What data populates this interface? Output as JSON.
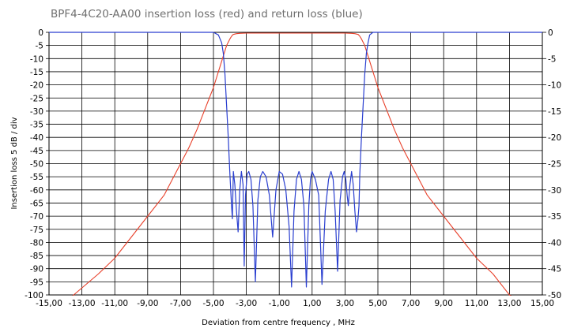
{
  "chart_data": {
    "type": "line",
    "title": "BPF4-4C20-AA00 insertion loss (red) and return loss (blue)",
    "xlabel": "Deviation from centre frequency ,  MHz",
    "ylabel": "Insertion loss  5 dB / div",
    "xlim": [
      -15,
      15
    ],
    "ylim_left": [
      -100,
      0
    ],
    "ylim_right": [
      -50,
      0
    ],
    "x_ticks": [
      "-15,00",
      "-13,00",
      "-11,00",
      "-9,00",
      "-7,00",
      "-5,00",
      "-3,00",
      "-1,00",
      "1,00",
      "3,00",
      "5,00",
      "7,00",
      "9,00",
      "11,00",
      "13,00",
      "15,00"
    ],
    "y_ticks_left": [
      "0",
      "-5",
      "-10",
      "-15",
      "-20",
      "-25",
      "-30",
      "-35",
      "-40",
      "-45",
      "-50",
      "-55",
      "-60",
      "-65",
      "-70",
      "-75",
      "-80",
      "-85",
      "-90",
      "-95",
      "-100"
    ],
    "y_ticks_right": [
      "0",
      "-5",
      "-10",
      "-15",
      "-20",
      "-25",
      "-30",
      "-35",
      "-40",
      "-45",
      "-50"
    ],
    "grid": true,
    "colors": {
      "insertion_loss": "#e8402a",
      "return_loss": "#2a3fd0",
      "grid": "#000000"
    },
    "series": [
      {
        "axis": "left",
        "x": [
          -15,
          -13.5,
          -12,
          -11,
          -10,
          -9,
          -8,
          -7,
          -6.5,
          -6,
          -5.5,
          -5,
          -4.8,
          -4.6,
          -4.4,
          -4.2,
          -4.0,
          -3.9,
          -3.8,
          -3.6,
          -3.4,
          -3.0,
          -2.0,
          0,
          2.0,
          3.0,
          3.4,
          3.6,
          3.8,
          3.9,
          4.0,
          4.2,
          4.4,
          4.6,
          4.8,
          5.0,
          5.5,
          6.0,
          6.5,
          7.0,
          8.0,
          9.0,
          10.0,
          11.0,
          12.0,
          13.0,
          13.5,
          15
        ],
        "values": [
          -110,
          -100,
          -92,
          -86,
          -78,
          -70,
          -62,
          -50,
          -44,
          -37,
          -29,
          -21,
          -17,
          -13,
          -9,
          -5,
          -2.5,
          -1.5,
          -0.8,
          -0.5,
          -0.4,
          -0.3,
          -0.3,
          -0.3,
          -0.3,
          -0.3,
          -0.4,
          -0.5,
          -0.8,
          -1.5,
          -2.5,
          -5,
          -9,
          -13,
          -17,
          -21,
          -29,
          -37,
          -44,
          -50,
          -62,
          -70,
          -78,
          -86,
          -92,
          -100,
          -102,
          -110
        ]
      },
      {
        "axis": "right",
        "x": [
          -15,
          -5.0,
          -4.7,
          -4.5,
          -4.4,
          -4.3,
          -4.2,
          -4.1,
          -4.0,
          -3.9,
          -3.85,
          -3.79,
          -3.7,
          -3.6,
          -3.5,
          -3.4,
          -3.3,
          -3.2,
          -3.13,
          -3.05,
          -2.95,
          -2.85,
          -2.72,
          -2.6,
          -2.45,
          -2.3,
          -2.15,
          -2.0,
          -1.8,
          -1.6,
          -1.4,
          -1.2,
          -1.0,
          -0.8,
          -0.6,
          -0.4,
          -0.25,
          -0.1,
          0.05,
          0.2,
          0.35,
          0.5,
          0.65,
          0.8,
          0.9,
          1.0,
          1.2,
          1.4,
          1.6,
          1.8,
          2.0,
          2.15,
          2.28,
          2.4,
          2.55,
          2.7,
          2.85,
          2.95,
          3.05,
          3.13,
          3.2,
          3.3,
          3.4,
          3.5,
          3.6,
          3.7,
          3.79,
          3.85,
          3.9,
          4.0,
          4.1,
          4.2,
          4.3,
          4.4,
          4.5,
          4.7,
          5.0,
          15
        ],
        "values": [
          0,
          0,
          -0.5,
          -2,
          -4,
          -8,
          -14,
          -20,
          -27,
          -33,
          -35.5,
          -26.5,
          -29,
          -34,
          -38,
          -30,
          -26.5,
          -29,
          -44.5,
          -31,
          -27,
          -26.5,
          -28,
          -33,
          -47.5,
          -32,
          -27.5,
          -26.5,
          -27.5,
          -31,
          -39,
          -30,
          -26.5,
          -27,
          -30,
          -37,
          -48.5,
          -34,
          -28,
          -26.5,
          -28,
          -33,
          -48.5,
          -33,
          -28,
          -26.5,
          -28,
          -31,
          -48,
          -34,
          -28,
          -26.5,
          -28,
          -34,
          -45.5,
          -32,
          -27.5,
          -26.5,
          -28,
          -31,
          -33,
          -29,
          -26.5,
          -29,
          -34,
          -38,
          -35.5,
          -33,
          -27,
          -20,
          -14,
          -8,
          -4,
          -2,
          -0.5,
          0,
          0,
          0
        ]
      }
    ]
  }
}
